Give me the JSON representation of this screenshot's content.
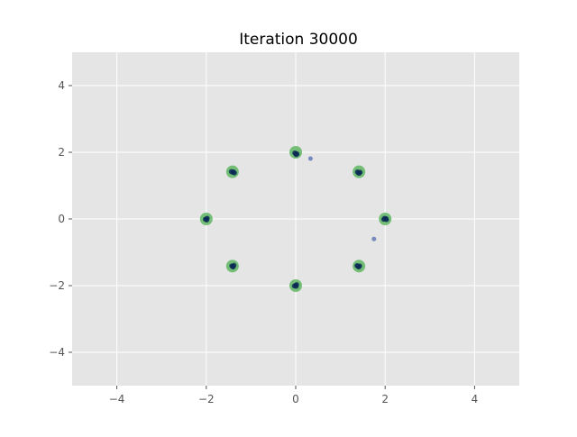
{
  "chart_data": {
    "type": "scatter",
    "title": "Iteration 30000",
    "xlabel": "",
    "ylabel": "",
    "xlim": [
      -5,
      5
    ],
    "ylim": [
      -5,
      5
    ],
    "xticks": [
      -4,
      -2,
      0,
      2,
      4
    ],
    "yticks": [
      -4,
      -2,
      0,
      2,
      4
    ],
    "xtick_labels": [
      "−4",
      "−2",
      "0",
      "2",
      "4"
    ],
    "ytick_labels": [
      "−4",
      "−2",
      "0",
      "2",
      "4"
    ],
    "grid": true,
    "legend": "none",
    "colors": {
      "background": "#e5e5e5",
      "grid": "#ffffff",
      "target": "#4caf50",
      "generated": "#1f3f9f",
      "generated_core": "#0b2a55"
    },
    "series": [
      {
        "points": [
          [
            2.0,
            0.0
          ],
          [
            1.414,
            1.414
          ],
          [
            0.0,
            2.0
          ],
          [
            -1.414,
            1.414
          ],
          [
            -2.0,
            0.0
          ],
          [
            -1.414,
            -1.414
          ],
          [
            0.0,
            -2.0
          ],
          [
            1.414,
            -1.414
          ]
        ]
      },
      {
        "points": [
          [
            1.97,
            -0.01
          ],
          [
            2.02,
            0.01
          ],
          [
            1.99,
            0.02
          ],
          [
            2.03,
            -0.02
          ],
          [
            1.4,
            1.38
          ],
          [
            1.44,
            1.4
          ],
          [
            1.38,
            1.41
          ],
          [
            1.42,
            1.37
          ],
          [
            0.0,
            1.96
          ],
          [
            0.03,
            1.95
          ],
          [
            -0.02,
            1.98
          ],
          [
            0.01,
            1.93
          ],
          [
            -1.41,
            1.4
          ],
          [
            -1.37,
            1.38
          ],
          [
            -1.44,
            1.42
          ],
          [
            -1.39,
            1.41
          ],
          [
            -2.0,
            0.0
          ],
          [
            -1.98,
            0.02
          ],
          [
            -2.02,
            -0.01
          ],
          [
            -1.99,
            -0.03
          ],
          [
            -1.41,
            -1.42
          ],
          [
            -1.38,
            -1.39
          ],
          [
            -1.43,
            -1.41
          ],
          [
            -1.4,
            -1.44
          ],
          [
            0.0,
            -1.99
          ],
          [
            -0.03,
            -2.01
          ],
          [
            0.02,
            -1.97
          ],
          [
            0.01,
            -2.02
          ],
          [
            1.39,
            -1.42
          ],
          [
            1.43,
            -1.41
          ],
          [
            1.41,
            -1.44
          ],
          [
            1.37,
            -1.4
          ],
          [
            0.33,
            1.81
          ],
          [
            1.75,
            -0.6
          ]
        ]
      }
    ]
  }
}
